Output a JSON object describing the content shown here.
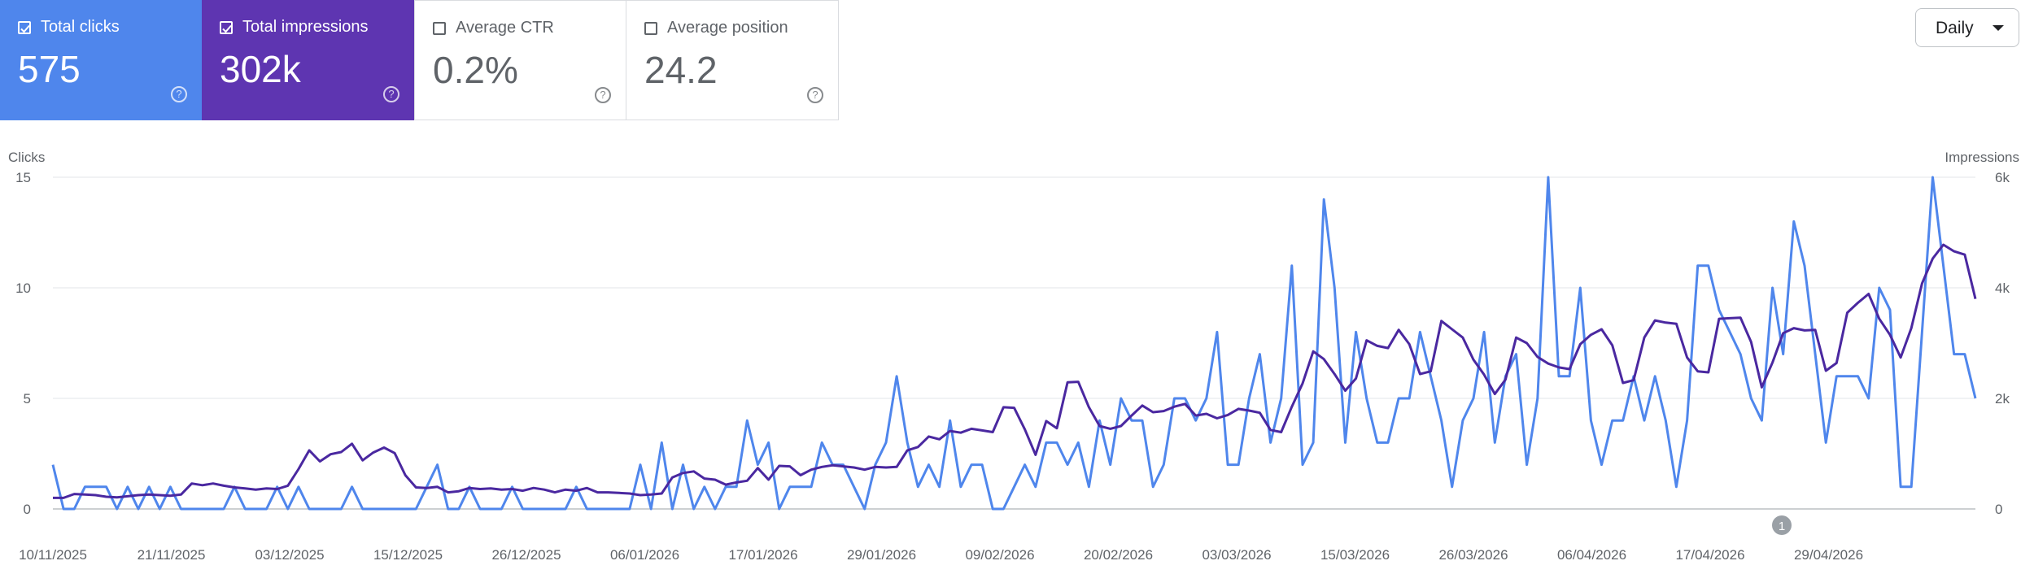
{
  "cards": [
    {
      "label": "Total clicks",
      "value": "575",
      "checked": true,
      "color": "#4f86ec"
    },
    {
      "label": "Total impressions",
      "value": "302k",
      "checked": true,
      "color": "#5e35b1"
    },
    {
      "label": "Average CTR",
      "value": "0.2%",
      "checked": false
    },
    {
      "label": "Average position",
      "value": "24.2",
      "checked": false
    }
  ],
  "help_glyph": "?",
  "period_select": {
    "value": "Daily"
  },
  "annotation_marker": "1",
  "chart_data": {
    "type": "line",
    "x_tick_labels": [
      "10/11/2025",
      "21/11/2025",
      "03/12/2025",
      "15/12/2025",
      "26/12/2025",
      "06/01/2026",
      "17/01/2026",
      "29/01/2026",
      "09/02/2026",
      "20/02/2026",
      "03/03/2026",
      "15/03/2026",
      "26/03/2026",
      "06/04/2026",
      "17/04/2026",
      "29/04/2026"
    ],
    "left_axis": {
      "title": "Clicks",
      "ticks": [
        "0",
        "5",
        "10",
        "15"
      ],
      "range": [
        0,
        15
      ]
    },
    "right_axis": {
      "title": "Impressions",
      "ticks": [
        "0",
        "2k",
        "4k",
        "6k"
      ],
      "range": [
        0,
        6000
      ]
    },
    "grid": true,
    "series": [
      {
        "color": "#4f86ec",
        "axis": "left",
        "values": [
          2,
          0,
          0,
          1,
          1,
          1,
          0,
          1,
          0,
          1,
          0,
          1,
          0,
          0,
          0,
          0,
          0,
          1,
          0,
          0,
          0,
          1,
          0,
          1,
          0,
          0,
          0,
          0,
          1,
          0,
          0,
          0,
          0,
          0,
          0,
          1,
          2,
          0,
          0,
          1,
          0,
          0,
          0,
          1,
          0,
          0,
          0,
          0,
          0,
          1,
          0,
          0,
          0,
          0,
          0,
          2,
          0,
          3,
          0,
          2,
          0,
          1,
          0,
          1,
          1,
          4,
          2,
          3,
          0,
          1,
          1,
          1,
          3,
          2,
          2,
          1,
          0,
          2,
          3,
          6,
          3,
          1,
          2,
          1,
          4,
          1,
          2,
          2,
          0,
          0,
          1,
          2,
          1,
          3,
          3,
          2,
          3,
          1,
          4,
          2,
          5,
          4,
          4,
          1,
          2,
          5,
          5,
          4,
          5,
          8,
          2,
          2,
          5,
          7,
          3,
          5,
          11,
          2,
          3,
          14,
          10,
          3,
          8,
          5,
          3,
          3,
          5,
          5,
          8,
          6,
          4,
          1,
          4,
          5,
          8,
          3,
          6,
          7,
          2,
          5,
          15,
          6,
          6,
          10,
          4,
          2,
          4,
          4,
          6,
          4,
          6,
          4,
          1,
          4,
          11,
          11,
          9,
          8,
          7,
          5,
          4,
          10,
          7,
          13,
          11,
          7,
          3,
          6,
          6,
          6,
          5,
          10,
          9,
          1,
          1,
          8,
          15,
          11,
          7,
          7,
          5
        ]
      },
      {
        "color": "#4a28a0",
        "axis": "right",
        "values": [
          200,
          200,
          270,
          260,
          250,
          220,
          210,
          230,
          250,
          260,
          250,
          240,
          260,
          460,
          430,
          460,
          420,
          390,
          370,
          350,
          370,
          360,
          420,
          720,
          1060,
          860,
          990,
          1030,
          1180,
          880,
          1020,
          1110,
          1010,
          610,
          390,
          380,
          400,
          300,
          320,
          380,
          360,
          370,
          350,
          360,
          330,
          380,
          350,
          300,
          350,
          330,
          380,
          300,
          300,
          290,
          280,
          250,
          260,
          280,
          570,
          650,
          680,
          550,
          530,
          440,
          480,
          510,
          740,
          530,
          780,
          770,
          610,
          710,
          760,
          790,
          770,
          750,
          710,
          760,
          750,
          760,
          1060,
          1120,
          1310,
          1260,
          1410,
          1380,
          1450,
          1420,
          1390,
          1840,
          1830,
          1440,
          980,
          1590,
          1460,
          2290,
          2300,
          1840,
          1500,
          1450,
          1500,
          1690,
          1870,
          1750,
          1770,
          1850,
          1900,
          1690,
          1720,
          1640,
          1700,
          1810,
          1780,
          1740,
          1430,
          1390,
          1850,
          2270,
          2850,
          2710,
          2440,
          2140,
          2360,
          3050,
          2950,
          2910,
          3240,
          2980,
          2440,
          2490,
          3400,
          3250,
          3100,
          2700,
          2430,
          2080,
          2340,
          3100,
          3000,
          2750,
          2630,
          2560,
          2530,
          2980,
          3150,
          3250,
          2960,
          2280,
          2330,
          3100,
          3410,
          3370,
          3350,
          2740,
          2490,
          2470,
          3440,
          3450,
          3460,
          3020,
          2200,
          2650,
          3180,
          3270,
          3230,
          3240,
          2500,
          2640,
          3550,
          3730,
          3890,
          3440,
          3150,
          2740,
          3270,
          4080,
          4530,
          4780,
          4660,
          4600,
          3800
        ]
      }
    ]
  }
}
